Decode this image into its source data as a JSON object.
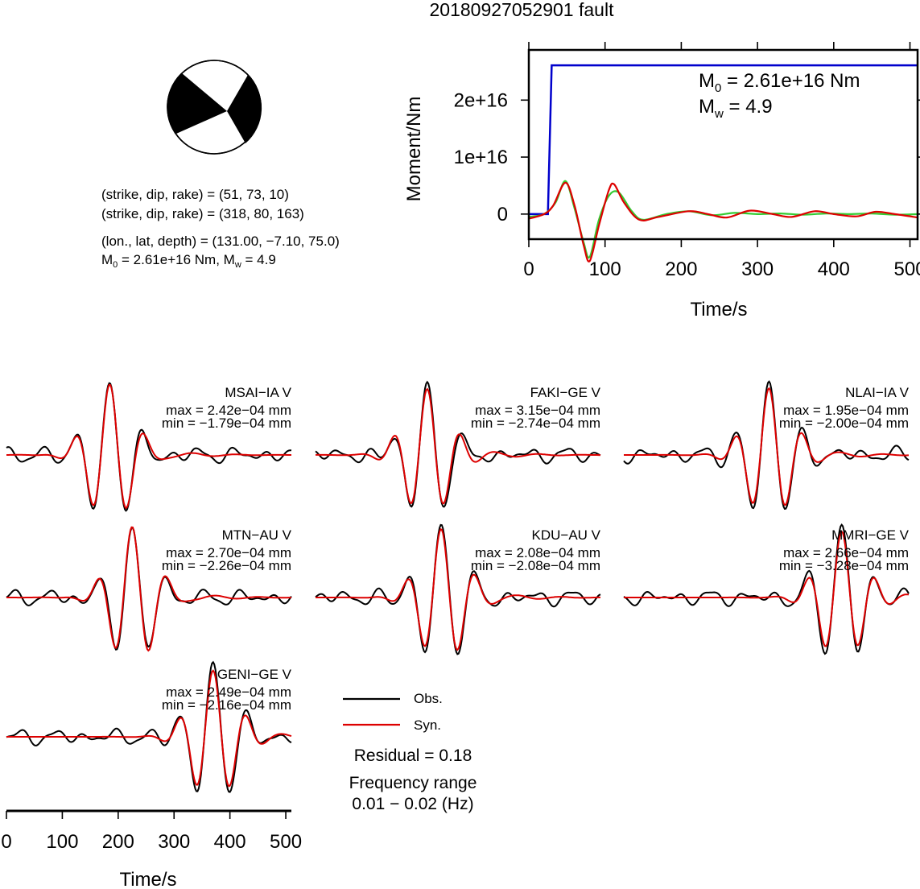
{
  "title": "20180927052901 fault",
  "mechanism": {
    "plane1": "(strike, dip, rake) = (51, 73, 10)",
    "plane2": "(strike, dip, rake) = (318, 80, 163)",
    "location": "(lon., lat, depth) = (131.00, −7.10, 75.0)",
    "m0_prefix": "M",
    "m0_sub": "0",
    "m0_text": " = 2.61e+16 Nm, M",
    "mw_sub": "w",
    "mw_text": " = 4.9"
  },
  "colors": {
    "obs": "#000000",
    "syn": "#dd0000",
    "moment": "#0000cc",
    "green": "#33cc33"
  },
  "chart_data": [
    {
      "type": "line",
      "title": "",
      "xlabel": "Time/s",
      "ylabel": "Moment/Nm",
      "xlim": [
        0,
        510
      ],
      "ylim": [
        -4400000000000000.0,
        2.88e+16
      ],
      "xticks": [
        0,
        100,
        200,
        300,
        400,
        500
      ],
      "yticks": [
        0,
        1e+16,
        2e+16
      ],
      "ytick_labels": [
        "0",
        "1e+16",
        "2e+16"
      ],
      "annotation": {
        "m0_label": "M",
        "m0_sub": "0",
        "m0_value": " = 2.61e+16 Nm",
        "mw_label": "M",
        "mw_sub": "w",
        "mw_value": " = 4.9"
      },
      "series": [
        {
          "x": [
            0,
            25,
            30,
            510
          ],
          "y": [
            0,
            0,
            2.61e+16,
            2.61e+16
          ]
        },
        {
          "x": [
            0,
            20,
            35,
            48,
            60,
            72,
            80,
            92,
            105,
            118,
            135,
            150,
            180,
            210,
            240,
            270,
            300,
            330,
            360,
            390,
            420,
            450,
            480,
            510
          ],
          "y": [
            -500000000000000.0,
            0,
            2000000000000000.0,
            5800000000000000.0,
            1000000000000000.0,
            -5000000000000000.0,
            -7500000000000000.0,
            -1000000000000000.0,
            3200000000000000.0,
            3800000000000000.0,
            500000000000000.0,
            -1000000000000000.0,
            0.0,
            500000000000000.0,
            -200000000000000.0,
            200000000000000.0,
            0.0,
            100000000000000.0,
            -100000000000000.0,
            100000000000000.0,
            0.0,
            100000000000000.0,
            -100000000000000.0,
            0.0
          ]
        },
        {
          "x": [
            0,
            20,
            32,
            48,
            60,
            72,
            80,
            92,
            105,
            112,
            125,
            145,
            170,
            210,
            235,
            260,
            290,
            320,
            345,
            375,
            400,
            430,
            455,
            480,
            510
          ],
          "y": [
            -800000000000000.0,
            0,
            1500000000000000.0,
            5500000000000000.0,
            1500000000000000.0,
            -5500000000000000.0,
            -8200000000000000.0,
            -2000000000000000.0,
            4200000000000000.0,
            5200000000000000.0,
            2000000000000000.0,
            -1000000000000000.0,
            -500000000000000.0,
            500000000000000.0,
            0.0,
            -600000000000000.0,
            600000000000000.0,
            0.0,
            -500000000000000.0,
            500000000000000.0,
            0.0,
            -400000000000000.0,
            400000000000000.0,
            0.0,
            -600000000000000.0
          ]
        }
      ]
    },
    {
      "type": "line",
      "stations": [
        {
          "name": "MSAI−IA V",
          "max": "max = 2.42e−04 mm",
          "min": "min = −1.79e−04 mm"
        },
        {
          "name": "FAKI−GE V",
          "max": "max = 3.15e−04 mm",
          "min": "min = −2.74e−04 mm"
        },
        {
          "name": "NLAI−IA V",
          "max": "max = 1.95e−04 mm",
          "min": "min = −2.00e−04 mm"
        },
        {
          "name": "MTN−AU V",
          "max": "max = 2.70e−04 mm",
          "min": "min = −2.26e−04 mm"
        },
        {
          "name": "KDU−AU V",
          "max": "max = 2.08e−04 mm",
          "min": "min = −2.08e−04 mm"
        },
        {
          "name": "MMRI−GE V",
          "max": "max = 2.66e−04 mm",
          "min": "min = −3.28e−04 mm"
        },
        {
          "name": "GENI−GE V",
          "max": "max = 2.49e−04 mm",
          "min": "min = −2.16e−04 mm"
        }
      ],
      "xlabel": "Time/s",
      "xlim": [
        0,
        510
      ],
      "xticks": [
        0,
        100,
        200,
        300,
        400,
        500
      ],
      "legend": {
        "obs": "Obs.",
        "syn": "Syn."
      },
      "residual": "Residual = 0.18",
      "freq_title": "Frequency range",
      "freq_range": "0.01 − 0.02 (Hz)"
    }
  ]
}
